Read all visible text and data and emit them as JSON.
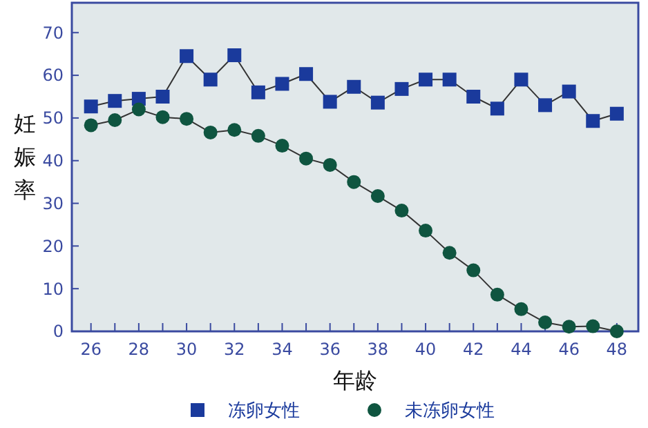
{
  "chart_data": {
    "type": "line",
    "xlabel": "年龄",
    "ylabel": "妊娠率",
    "x": [
      26,
      27,
      28,
      29,
      30,
      31,
      32,
      33,
      34,
      35,
      36,
      37,
      38,
      39,
      40,
      41,
      42,
      43,
      44,
      45,
      46,
      47,
      48
    ],
    "series": [
      {
        "name": "冻卵女性",
        "color": "#1a3a9c",
        "marker": "square",
        "values": [
          52.7,
          54,
          54.5,
          55,
          64.5,
          59,
          64.7,
          56,
          58,
          60.3,
          53.8,
          57.3,
          53.6,
          56.8,
          59,
          59,
          55,
          52.2,
          59,
          53,
          56.2,
          49.3,
          51
        ]
      },
      {
        "name": "未冻卵女性",
        "color": "#0f5540",
        "marker": "circle",
        "values": [
          48.3,
          49.5,
          52,
          50.2,
          49.8,
          46.6,
          47.2,
          45.8,
          43.5,
          40.5,
          39,
          35,
          31.7,
          28.3,
          23.6,
          18.4,
          14.3,
          8.6,
          5.2,
          2.1,
          1.1,
          1.2,
          0
        ]
      }
    ],
    "xlim": [
      25.2,
      48.9
    ],
    "ylim": [
      0,
      77
    ],
    "xticks": [
      26,
      {
        "value": 27,
        "label": null
      },
      28,
      {
        "value": 29,
        "label": null
      },
      30,
      {
        "value": 31,
        "label": null
      },
      32,
      {
        "value": 33,
        "label": null
      },
      34,
      {
        "value": 35,
        "label": null
      },
      36,
      {
        "value": 37,
        "label": null
      },
      38,
      {
        "value": 39,
        "label": null
      },
      40,
      {
        "value": 41,
        "label": null
      },
      42,
      {
        "value": 43,
        "label": null
      },
      44,
      {
        "value": 45,
        "label": null
      },
      46,
      {
        "value": 47,
        "label": null
      },
      48
    ],
    "yticks": [
      0,
      10,
      20,
      30,
      40,
      50,
      60,
      70
    ],
    "grid": false,
    "legend": "bottom",
    "line_style": "solid"
  }
}
